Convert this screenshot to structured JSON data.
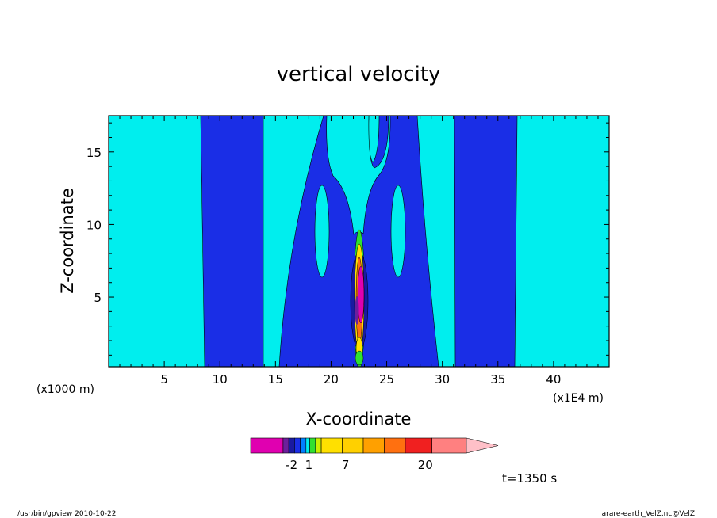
{
  "chart_data": {
    "type": "contour",
    "title": "vertical velocity",
    "xlabel": "X-coordinate",
    "ylabel": "Z-coordinate",
    "x_unit_left": "(x1000 m)",
    "x_unit_right": "(x1E4 m)",
    "xlim": [
      0,
      45
    ],
    "ylim": [
      0.2,
      17.5
    ],
    "x_ticks": [
      5,
      10,
      15,
      20,
      25,
      30,
      35,
      40
    ],
    "y_ticks": [
      5,
      10,
      15
    ],
    "background_level_color": "#00eeee",
    "negative_band_color": "#1a2ee6",
    "regions": [
      {
        "name": "downdraft-left",
        "x_range": [
          8.6,
          14.0
        ],
        "level": "negative"
      },
      {
        "name": "downdraft-center",
        "x_range": [
          15.0,
          29.7
        ],
        "level": "negative"
      },
      {
        "name": "downdraft-right",
        "x_range": [
          31.0,
          36.5
        ],
        "level": "negative"
      },
      {
        "name": "updraft-core",
        "x_center": 22.6,
        "z_range": [
          0.2,
          9.5
        ],
        "level": "strong-positive"
      }
    ],
    "colorbar": {
      "colors": [
        "#e000b0",
        "#e000b0",
        "#6c1f9c",
        "#1a1aa0",
        "#1a2ee6",
        "#0080ff",
        "#00eeee",
        "#30e030",
        "#c8f000",
        "#ffe000",
        "#ffd000",
        "#ffa000",
        "#ff7010",
        "#f02020",
        "#ff8080",
        "#ffc0c8"
      ],
      "tick_labels": [
        {
          "label": "-2",
          "frac": 0.19
        },
        {
          "label": "1",
          "frac": 0.27
        },
        {
          "label": "7",
          "frac": 0.44
        },
        {
          "label": "20",
          "frac": 0.81
        }
      ]
    },
    "time_label": "t=1350 s"
  },
  "footer": {
    "left": "/usr/bin/gpview   2010-10-22",
    "right": "arare-earth_VelZ.nc@VelZ"
  }
}
